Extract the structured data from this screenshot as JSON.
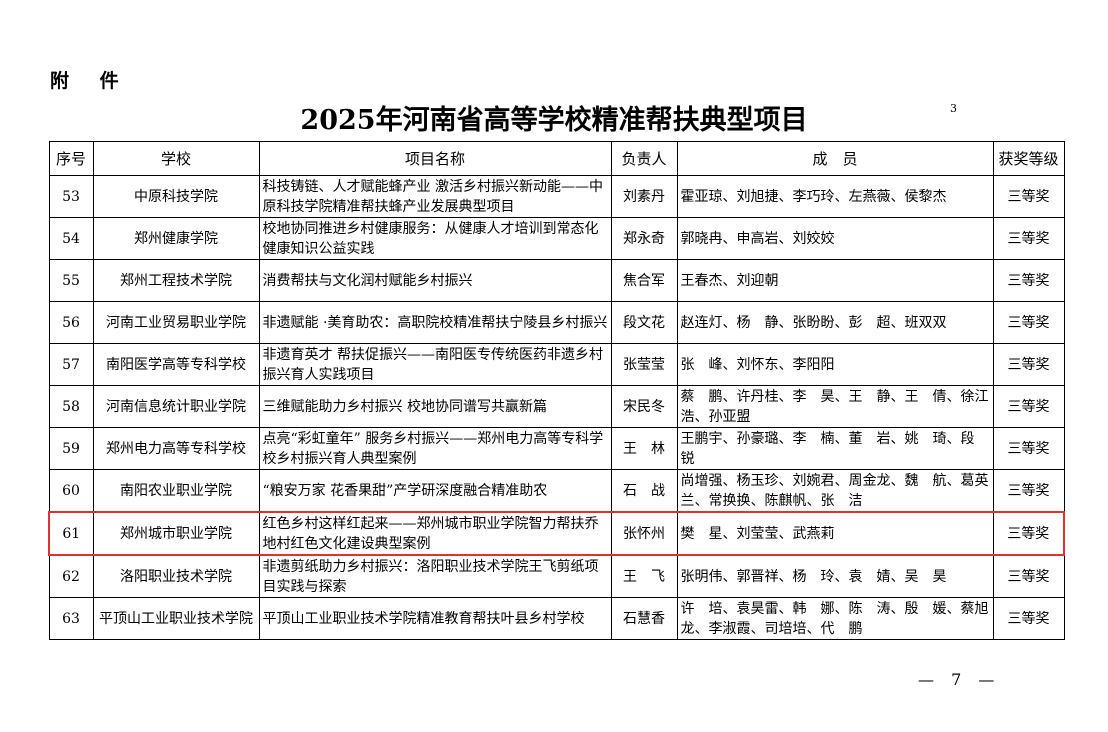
{
  "header": {
    "attachment": "附 件",
    "title": "2025年河南省高等学校精准帮扶典型项目",
    "corner_mark": "3"
  },
  "table": {
    "columns": [
      "序号",
      "学校",
      "项目名称",
      "负责人",
      "成　员",
      "获奖等级"
    ],
    "rows": [
      {
        "no": "53",
        "school": "中原科技学院",
        "project": "科技铸链、人才赋能蜂产业 激活乡村振兴新动能——中原科技学院精准帮扶蜂产业发展典型项目",
        "leader": "刘素丹",
        "members": "霍亚琼、刘旭捷、李巧玲、左燕薇、侯黎杰",
        "award": "三等奖"
      },
      {
        "no": "54",
        "school": "郑州健康学院",
        "project": "校地协同推进乡村健康服务：从健康人才培训到常态化健康知识公益实践",
        "leader": "郑永奇",
        "members": "郭晓冉、申高岩、刘姣姣",
        "award": "三等奖"
      },
      {
        "no": "55",
        "school": "郑州工程技术学院",
        "project": "消费帮扶与文化润村赋能乡村振兴",
        "leader": "焦合军",
        "members": "王春杰、刘迎朝",
        "award": "三等奖"
      },
      {
        "no": "56",
        "school": "河南工业贸易职业学院",
        "project": "非遗赋能 ·美育助农：高职院校精准帮扶宁陵县乡村振兴",
        "leader": "段文花",
        "members": "赵连灯、杨　静、张盼盼、彭　超、班双双",
        "award": "三等奖"
      },
      {
        "no": "57",
        "school": "南阳医学高等专科学校",
        "project": "非遗育英才 帮扶促振兴——南阳医专传统医药非遗乡村振兴育人实践项目",
        "leader": "张莹莹",
        "members": "张　峰、刘怀东、李阳阳",
        "award": "三等奖"
      },
      {
        "no": "58",
        "school": "河南信息统计职业学院",
        "project": "三维赋能助力乡村振兴 校地协同谱写共赢新篇",
        "leader": "宋民冬",
        "members": "蔡　鹏、许丹桂、李　昊、王　静、王　倩、徐江浩、孙亚盟",
        "award": "三等奖"
      },
      {
        "no": "59",
        "school": "郑州电力高等专科学校",
        "project": "点亮“彩虹童年” 服务乡村振兴——郑州电力高等专科学校乡村振兴育人典型案例",
        "leader": "王　林",
        "members": "王鹏宇、孙豪璐、李　楠、董　岩、姚　琦、段　锐",
        "award": "三等奖"
      },
      {
        "no": "60",
        "school": "南阳农业职业学院",
        "project": "“粮安万家 花香果甜”产学研深度融合精准助农",
        "leader": "石　战",
        "members": "尚增强、杨玉珍、刘婉君、周金龙、魏　航、葛英兰、常换换、陈麒帆、张　洁",
        "award": "三等奖"
      },
      {
        "no": "61",
        "school": "郑州城市职业学院",
        "project": "红色乡村这样红起来——郑州城市职业学院智力帮扶乔地村红色文化建设典型案例",
        "leader": "张怀州",
        "members": "樊　星、刘莹莹、武燕莉",
        "award": "三等奖",
        "highlighted": true
      },
      {
        "no": "62",
        "school": "洛阳职业技术学院",
        "project": "非遗剪纸助力乡村振兴：洛阳职业技术学院王飞剪纸项目实践与探索",
        "leader": "王　飞",
        "members": "张明伟、郭晋祥、杨　玲、袁　婧、吴　昊",
        "award": "三等奖"
      },
      {
        "no": "63",
        "school": "平顶山工业职业技术学院",
        "project": "平顶山工业职业技术学院精准教育帮扶叶县乡村学校",
        "leader": "石慧香",
        "members": "许　培、袁昊雷、韩　娜、陈　涛、殷　媛、蔡旭龙、李淑霞、司培培、代　鹏",
        "award": "三等奖"
      }
    ]
  },
  "footer": {
    "page": "— 7 —"
  },
  "colors": {
    "highlight_border": "#e03030"
  }
}
